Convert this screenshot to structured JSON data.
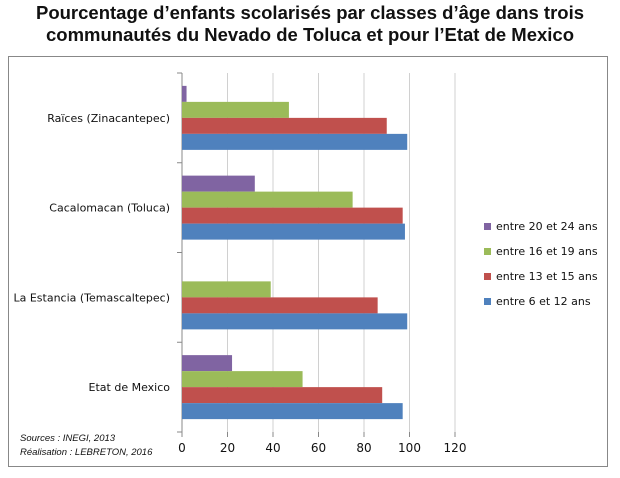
{
  "title_line1": "Pourcentage d’enfants scolarisés par classes d’âge dans trois",
  "title_line2": "communautés du Nevado de Toluca et pour l’Etat de Mexico",
  "source_line1": "Sources : INEGI, 2013",
  "source_line2": "Réalisation : LEBRETON,  2016",
  "chart_data": {
    "type": "bar",
    "orientation": "horizontal",
    "title": "Pourcentage d’enfants scolarisés par classes d’âge dans trois communautés du Nevado de Toluca et pour l’Etat de Mexico",
    "categories": [
      "Raïces (Zinacantepec)",
      "Cacalomacan (Toluca)",
      "La Estancia (Temascaltepec)",
      "Etat de Mexico"
    ],
    "series": [
      {
        "name": "entre 20 et 24 ans",
        "color": "#8064a2",
        "values": [
          2,
          32,
          0,
          22
        ]
      },
      {
        "name": "entre 16 et 19 ans",
        "color": "#9bbb59",
        "values": [
          47,
          75,
          39,
          53
        ]
      },
      {
        "name": "entre 13 et 15 ans",
        "color": "#c0504d",
        "values": [
          90,
          97,
          86,
          88
        ]
      },
      {
        "name": "entre 6 et 12 ans",
        "color": "#4f81bd",
        "values": [
          99,
          98,
          99,
          97
        ]
      }
    ],
    "xlim": [
      0,
      120
    ],
    "xticks": [
      0,
      20,
      40,
      60,
      80,
      100,
      120
    ],
    "xlabel": "",
    "ylabel": "",
    "grid": true,
    "legend_position": "right",
    "legend_order": [
      "entre 20 et 24 ans",
      "entre 16 et 19 ans",
      "entre 13 et 15 ans",
      "entre 6 et 12 ans"
    ]
  }
}
